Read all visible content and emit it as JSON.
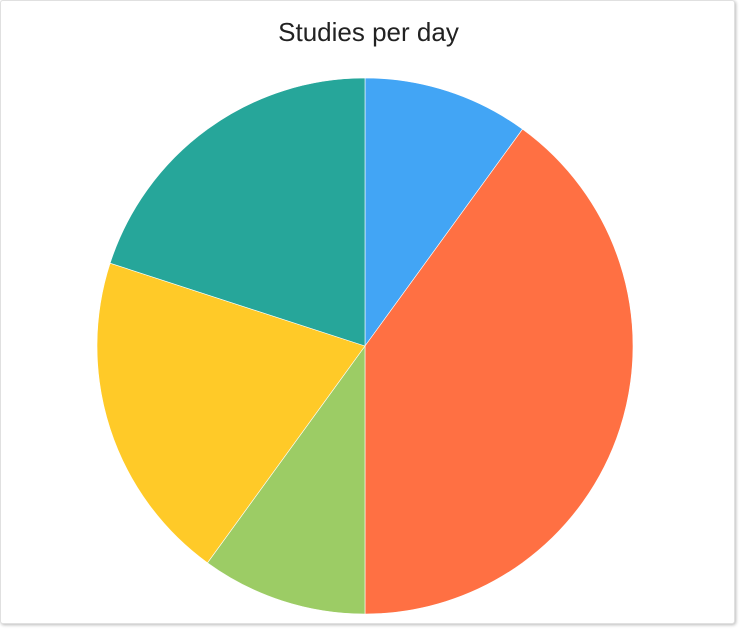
{
  "chart_data": {
    "type": "pie",
    "title": "Studies per day",
    "slices": [
      {
        "value": 10,
        "color": "#42a5f5"
      },
      {
        "value": 40,
        "color": "#ff7043"
      },
      {
        "value": 10,
        "color": "#9ccc65"
      },
      {
        "value": 20,
        "color": "#ffca28"
      },
      {
        "value": 20,
        "color": "#26a69a"
      }
    ],
    "start_angle_deg": 0,
    "direction": "clockwise",
    "legend": "none"
  }
}
